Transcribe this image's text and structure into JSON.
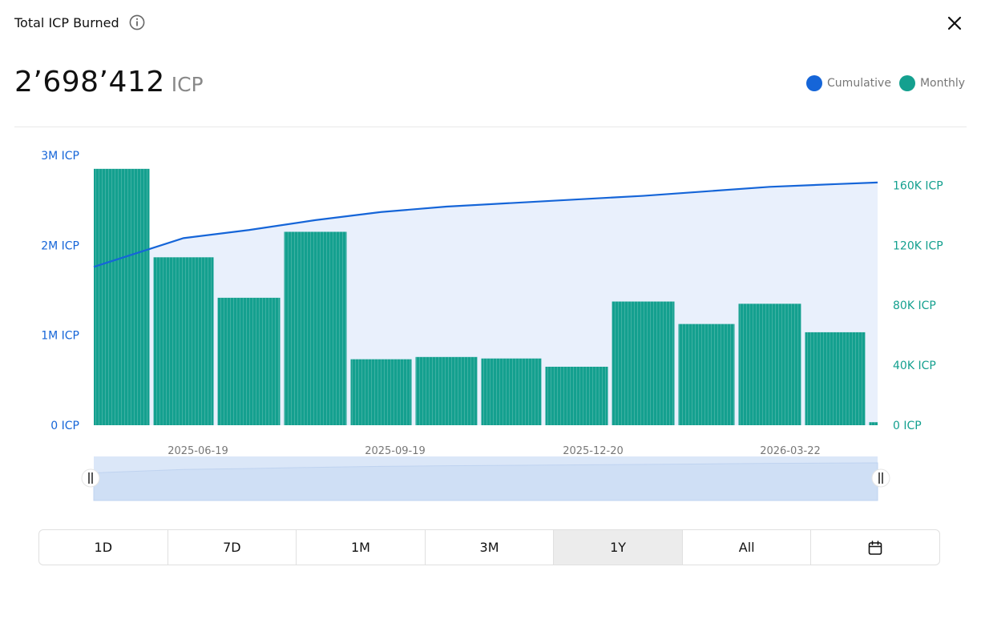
{
  "header": {
    "title": "Total ICP Burned"
  },
  "summary": {
    "value": "2’698’412",
    "unit": "ICP"
  },
  "legend": [
    {
      "label": "Cumulative",
      "color": "#1565d8"
    },
    {
      "label": "Monthly",
      "color": "#14a08f"
    }
  ],
  "range_buttons": [
    {
      "label": "1D",
      "active": false
    },
    {
      "label": "7D",
      "active": false
    },
    {
      "label": "1M",
      "active": false
    },
    {
      "label": "3M",
      "active": false
    },
    {
      "label": "1Y",
      "active": true
    },
    {
      "label": "All",
      "active": false
    }
  ],
  "chart_data": {
    "type": "bar",
    "categories": [
      "2025-05",
      "2025-06",
      "2025-07",
      "2025-08",
      "2025-09",
      "2025-10",
      "2025-11",
      "2025-12",
      "2026-01",
      "2026-02",
      "2026-03",
      "2026-04",
      "2026-05"
    ],
    "series": [
      {
        "name": "Monthly",
        "axis": "right",
        "color": "#14a08f",
        "type": "bar",
        "values": [
          171000,
          112000,
          85000,
          129000,
          44000,
          45500,
          44500,
          39000,
          82500,
          67500,
          81000,
          62000,
          2000
        ]
      },
      {
        "name": "Cumulative",
        "axis": "left",
        "color": "#1565d8",
        "type": "line",
        "values": [
          1760000,
          2080000,
          2170000,
          2280000,
          2370000,
          2430000,
          2470000,
          2510000,
          2550000,
          2600000,
          2650000,
          2680000,
          2698412
        ]
      }
    ],
    "x_tick_labels": [
      "2025-06-19",
      "2025-09-19",
      "2025-12-20",
      "2026-03-22"
    ],
    "left_axis": {
      "ticks": [
        "0 ICP",
        "1M ICP",
        "2M ICP",
        "3M ICP"
      ],
      "ylim": [
        0,
        3000000
      ],
      "color": "#1565d8"
    },
    "right_axis": {
      "ticks": [
        "0 ICP",
        "40K ICP",
        "80K ICP",
        "120K ICP",
        "160K ICP"
      ],
      "ylim": [
        0,
        180000
      ],
      "color": "#14a08f"
    }
  }
}
